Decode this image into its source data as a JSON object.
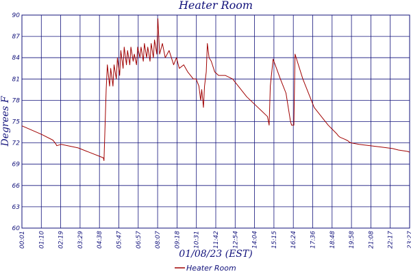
{
  "chart_data": {
    "type": "line",
    "title": "Heater Room",
    "xlabel": "01/08/23 (EST)",
    "ylabel": "Degrees F",
    "ylim": [
      60,
      90
    ],
    "y_ticks": [
      "90",
      "87",
      "84",
      "81",
      "78",
      "75",
      "72",
      "69",
      "66",
      "63",
      "60"
    ],
    "x_ticks": [
      "00:01",
      "01:10",
      "02:19",
      "03:29",
      "04:38",
      "05:47",
      "06:57",
      "08:07",
      "09:18",
      "10:31",
      "11:42",
      "12:54",
      "14:04",
      "15:15",
      "16:24",
      "17:36",
      "18:48",
      "19:58",
      "21:08",
      "22:17",
      "23:27"
    ],
    "grid": true,
    "legend_position": "bottom-center",
    "series": [
      {
        "name": "Heater Room",
        "color": "#a00000",
        "x": [
          0,
          35,
          55,
          60,
          62,
          70,
          100,
          145,
          146,
          150,
          152,
          156,
          158,
          162,
          164,
          168,
          170,
          174,
          176,
          180,
          182,
          186,
          188,
          192,
          194,
          198,
          200,
          204,
          206,
          210,
          212,
          216,
          218,
          222,
          224,
          228,
          230,
          234,
          236,
          240,
          242,
          245,
          250,
          255,
          262,
          270,
          275,
          280,
          288,
          295,
          300,
          305,
          310,
          315,
          318,
          320,
          323,
          325,
          328,
          330,
          333,
          337,
          343,
          350,
          362,
          375,
          390,
          400,
          420,
          437,
          440,
          442,
          447,
          460,
          470,
          474,
          478,
          480,
          484,
          486,
          500,
          520,
          545,
          560,
          563,
          566,
          575,
          580,
          583,
          586,
          600,
          620,
          640,
          660,
          670,
          678,
          686,
          690
        ],
        "y": [
          74.4,
          73.2,
          72.4,
          71.9,
          71.6,
          71.8,
          71.3,
          69.9,
          69.5,
          79.5,
          83.0,
          80.0,
          82.5,
          80.0,
          83.0,
          81.0,
          84.0,
          81.5,
          85.0,
          82.5,
          85.5,
          83.0,
          85.0,
          83.0,
          85.5,
          83.5,
          84.5,
          83.0,
          85.5,
          84.0,
          85.5,
          83.5,
          86.0,
          84.0,
          85.5,
          83.5,
          86.0,
          84.0,
          86.5,
          84.5,
          89.5,
          84.5,
          86.0,
          84.0,
          85.0,
          83.0,
          84.0,
          82.5,
          83.0,
          82.0,
          81.5,
          81.0,
          81.0,
          80.0,
          78.0,
          79.5,
          77.0,
          80.0,
          82.0,
          86.0,
          84.0,
          83.5,
          82.0,
          81.5,
          81.5,
          81.0,
          79.5,
          78.5,
          77.0,
          75.7,
          74.5,
          80.0,
          83.8,
          81.0,
          79.0,
          77.0,
          75.0,
          74.5,
          74.5,
          84.5,
          81.0,
          77.0,
          74.5,
          73.3,
          73.0,
          72.8,
          72.5,
          72.3,
          72.1,
          72.0,
          71.8,
          71.6,
          71.4,
          71.2,
          71.0,
          70.9,
          70.8,
          70.7
        ]
      }
    ]
  }
}
